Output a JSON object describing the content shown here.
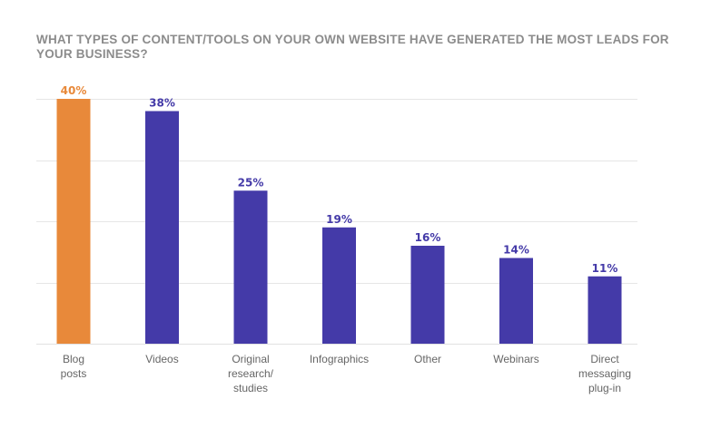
{
  "chart_data": {
    "type": "bar",
    "title": "WHAT TYPES OF CONTENT/TOOLS ON YOUR OWN WEBSITE HAVE GENERATED THE MOST LEADS FOR YOUR BUSINESS?",
    "categories": [
      [
        "Blog",
        "posts"
      ],
      [
        "Videos"
      ],
      [
        "Original",
        "research/",
        "studies"
      ],
      [
        "Infographics"
      ],
      [
        "Other"
      ],
      [
        "Webinars"
      ],
      [
        "Direct",
        "messaging",
        "plug-in"
      ]
    ],
    "values": [
      40,
      38,
      25,
      19,
      16,
      14,
      11
    ],
    "value_labels": [
      "40%",
      "38%",
      "25%",
      "19%",
      "16%",
      "14%",
      "11%"
    ],
    "bar_colors": [
      "#E8893A",
      "#443AA8",
      "#443AA8",
      "#443AA8",
      "#443AA8",
      "#443AA8",
      "#443AA8"
    ],
    "label_colors": [
      "#E8893A",
      "#443AA8",
      "#443AA8",
      "#443AA8",
      "#443AA8",
      "#443AA8",
      "#443AA8"
    ],
    "ylim": [
      0,
      40
    ],
    "grid": true,
    "xlabel": "",
    "ylabel": ""
  }
}
